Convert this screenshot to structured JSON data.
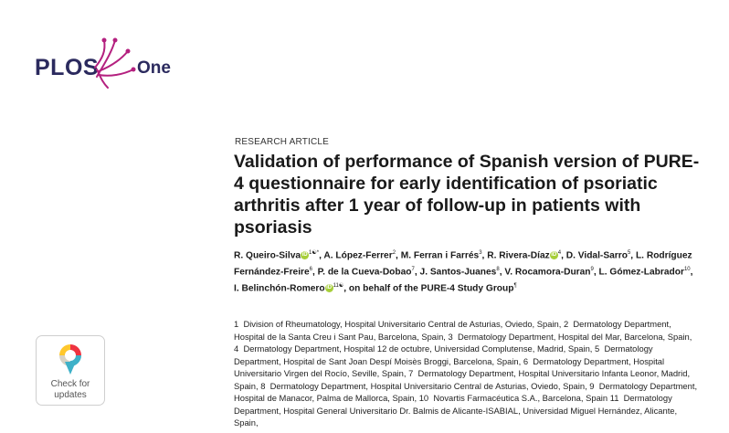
{
  "logo": {
    "brand": "PLOS",
    "journal": "One"
  },
  "article_type": "RESEARCH ARTICLE",
  "title": "Validation of performance of Spanish version of PURE-4 questionnaire for early identification of psoriatic arthritis after 1 year of follow-up in patients with psoriasis",
  "authors": [
    {
      "name": "R. Queiro-Silva",
      "aff": "1☯*",
      "orcid": true,
      "sep": ", "
    },
    {
      "name": "A. López-Ferrer",
      "aff": "2",
      "sep": ", "
    },
    {
      "name": "M. Ferran i Farrés",
      "aff": "3",
      "sep": ", "
    },
    {
      "name": "R. Rivera-Díaz",
      "aff": "4",
      "orcid": true,
      "sep": ", "
    },
    {
      "name": "D. Vidal-Sarro",
      "aff": "5",
      "sep": ", "
    },
    {
      "name": "L. Rodríguez Fernández-Freire",
      "aff": "6",
      "sep": ", "
    },
    {
      "name": "P. de la Cueva-Dobao",
      "aff": "7",
      "sep": ", "
    },
    {
      "name": "J. Santos-Juanes",
      "aff": "8",
      "sep": ", "
    },
    {
      "name": "V. Rocamora-Duran",
      "aff": "9",
      "sep": ", "
    },
    {
      "name": "L. Gómez-Labrador",
      "aff": "10",
      "sep": ", "
    },
    {
      "name": "I. Belinchón-Romero",
      "aff": "11☯",
      "orcid": true,
      "sep": ", "
    },
    {
      "name": "on behalf of the PURE-4 Study Group",
      "aff": "¶",
      "sep": ""
    }
  ],
  "affiliations": [
    {
      "n": "1",
      "t": "Division of Rheumatology, Hospital Universitario Central de Asturias, Oviedo, Spain,"
    },
    {
      "n": "2",
      "t": "Dermatology Department, Hospital de la Santa Creu i Sant Pau, Barcelona, Spain,"
    },
    {
      "n": "3",
      "t": "Dermatology Department, Hospital del Mar, Barcelona, Spain,"
    },
    {
      "n": "4",
      "t": "Dermatology Department, Hospital 12 de octubre, Universidad Complutense, Madrid, Spain,"
    },
    {
      "n": "5",
      "t": "Dermatology Department, Hospital de Sant Joan Despí Moisès Broggi, Barcelona, Spain,"
    },
    {
      "n": "6",
      "t": "Dermatology Department, Hospital Universitario Virgen del Rocío, Seville, Spain,"
    },
    {
      "n": "7",
      "t": "Dermatology Department, Hospital Universitario Infanta Leonor, Madrid, Spain,"
    },
    {
      "n": "8",
      "t": "Dermatology Department, Hospital Universitario Central de Asturias, Oviedo, Spain,"
    },
    {
      "n": "9",
      "t": "Dermatology Department, Hospital de Manacor, Palma de Mallorca, Spain,"
    },
    {
      "n": "10",
      "t": "Novartis Farmacéutica S.A., Barcelona, Spain"
    },
    {
      "n": "11",
      "t": "Dermatology Department, Hospital General Universitario Dr. Balmis de Alicante-ISABIAL, Universidad Miguel Hernández, Alicante, Spain,"
    }
  ],
  "check_updates": {
    "line1": "Check for",
    "line2": "updates"
  },
  "colors": {
    "brand_navy": "#2b2a5e",
    "brand_magenta": "#b4207f",
    "orcid_green": "#a6ce39"
  }
}
